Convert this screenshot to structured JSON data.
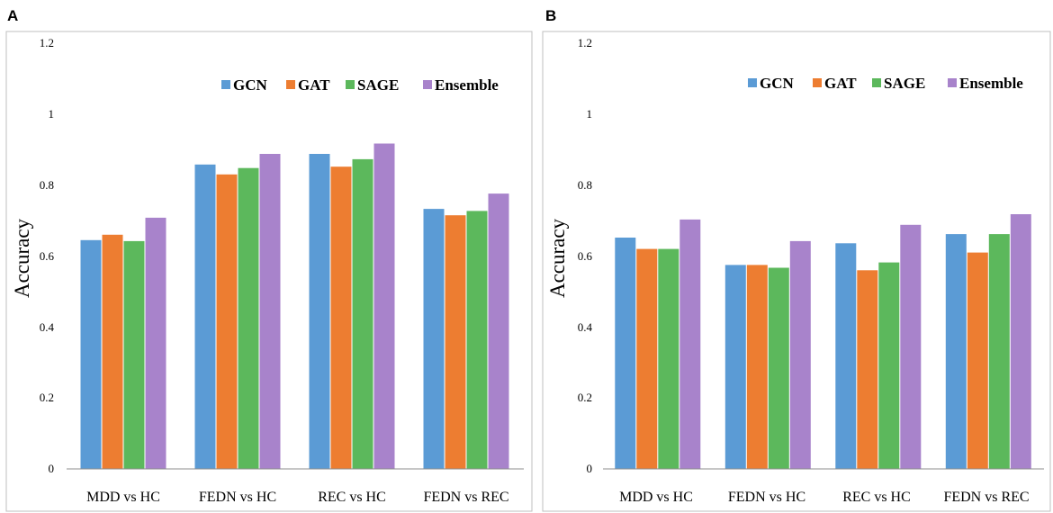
{
  "figure": {
    "colors": {
      "GCN": "#5B9BD5",
      "GAT": "#ED7D31",
      "SAGE": "#5CB85C",
      "Ensemble": "#A883CB"
    }
  },
  "chart_data": [
    {
      "panel": "A",
      "type": "bar",
      "title": "",
      "xlabel": "",
      "ylabel": "Accuracy",
      "ylim": [
        0,
        1.2
      ],
      "yticks": [
        "0",
        "0.2",
        "0.4",
        "0.6",
        "0.8",
        "1",
        "1.2"
      ],
      "categories": [
        "MDD vs HC",
        "FEDN vs HC",
        "REC vs HC",
        "FEDN vs REC"
      ],
      "legend": "top-right",
      "series": [
        {
          "name": "GCN",
          "values": [
            0.645,
            0.858,
            0.888,
            0.733
          ]
        },
        {
          "name": "GAT",
          "values": [
            0.66,
            0.83,
            0.852,
            0.715
          ]
        },
        {
          "name": "SAGE",
          "values": [
            0.642,
            0.848,
            0.873,
            0.727
          ]
        },
        {
          "name": "Ensemble",
          "values": [
            0.708,
            0.888,
            0.917,
            0.776
          ]
        }
      ]
    },
    {
      "panel": "B",
      "type": "bar",
      "title": "",
      "xlabel": "",
      "ylabel": "Accuracy",
      "ylim": [
        0,
        1.2
      ],
      "yticks": [
        "0",
        "0.2",
        "0.4",
        "0.6",
        "0.8",
        "1",
        "1.2"
      ],
      "categories": [
        "MDD vs HC",
        "FEDN vs HC",
        "REC vs HC",
        "FEDN vs REC"
      ],
      "legend": "top-right",
      "series": [
        {
          "name": "GCN",
          "values": [
            0.652,
            0.575,
            0.636,
            0.662
          ]
        },
        {
          "name": "GAT",
          "values": [
            0.62,
            0.575,
            0.56,
            0.61
          ]
        },
        {
          "name": "SAGE",
          "values": [
            0.62,
            0.567,
            0.582,
            0.662
          ]
        },
        {
          "name": "Ensemble",
          "values": [
            0.703,
            0.642,
            0.688,
            0.718
          ]
        }
      ]
    }
  ]
}
